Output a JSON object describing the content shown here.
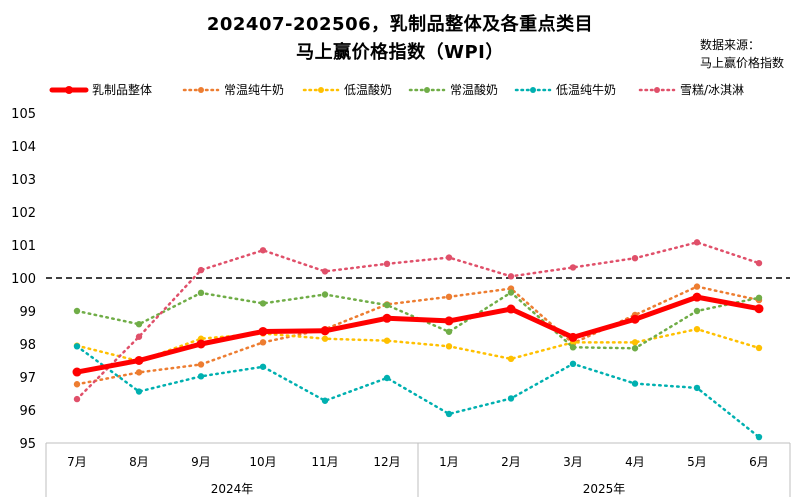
{
  "title_line1": "202407-202506，乳制品整体及各重点类目",
  "title_line2": "马上赢价格指数（WPI）",
  "source_line1": "数据来源：",
  "source_line2": "马上赢价格指数",
  "chart_data": {
    "type": "line",
    "categories": [
      "7月",
      "8月",
      "9月",
      "10月",
      "11月",
      "12月",
      "1月",
      "2月",
      "3月",
      "4月",
      "5月",
      "6月"
    ],
    "year_groups": [
      {
        "label": "2024年",
        "start": 0,
        "end": 5
      },
      {
        "label": "2025年",
        "start": 6,
        "end": 11
      }
    ],
    "ylim": [
      95,
      105
    ],
    "yticks": [
      95,
      96,
      97,
      98,
      99,
      100,
      101,
      102,
      103,
      104,
      105
    ],
    "reference_line": 100,
    "legend_position": "top",
    "series": [
      {
        "name": "乳制品整体",
        "color": "#ff0000",
        "style": "solid",
        "values": [
          97.15,
          97.5,
          98.0,
          98.38,
          98.4,
          98.78,
          98.7,
          99.06,
          98.2,
          98.75,
          99.42,
          99.07
        ]
      },
      {
        "name": "常温纯牛奶",
        "color": "#ed7d31",
        "style": "dotted",
        "values": [
          96.78,
          97.14,
          97.38,
          98.05,
          98.45,
          99.2,
          99.43,
          99.68,
          98.02,
          98.88,
          99.74,
          99.33
        ]
      },
      {
        "name": "低温酸奶",
        "color": "#ffc000",
        "style": "dotted",
        "values": [
          97.95,
          97.48,
          98.16,
          98.32,
          98.16,
          98.1,
          97.93,
          97.55,
          98.05,
          98.05,
          98.45,
          97.88
        ]
      },
      {
        "name": "常温酸奶",
        "color": "#70ad47",
        "style": "dotted",
        "values": [
          99.0,
          98.6,
          99.55,
          99.23,
          99.5,
          99.18,
          98.37,
          99.56,
          97.9,
          97.87,
          99.0,
          99.4
        ]
      },
      {
        "name": "低温纯牛奶",
        "color": "#00b0b0",
        "style": "dotted",
        "values": [
          97.93,
          96.56,
          97.02,
          97.31,
          96.28,
          96.97,
          95.88,
          96.35,
          97.4,
          96.8,
          96.67,
          95.18
        ]
      },
      {
        "name": "雪糕/冰淇淋",
        "color": "#e0506a",
        "style": "dotted",
        "values": [
          96.33,
          98.22,
          100.24,
          100.84,
          100.2,
          100.43,
          100.62,
          100.05,
          100.32,
          100.6,
          101.08,
          100.45
        ]
      }
    ]
  }
}
